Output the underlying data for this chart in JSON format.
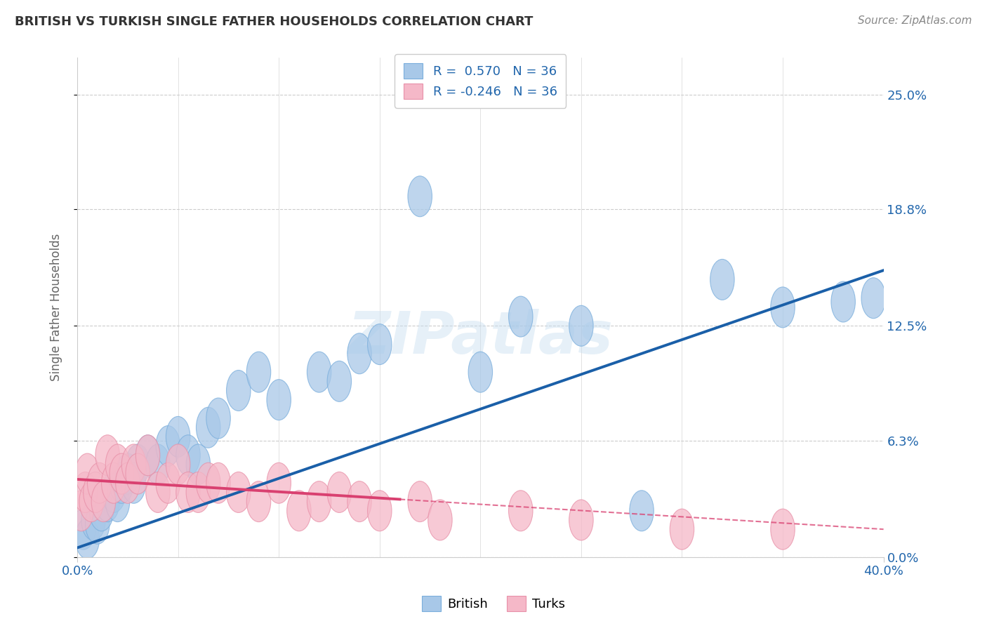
{
  "title": "BRITISH VS TURKISH SINGLE FATHER HOUSEHOLDS CORRELATION CHART",
  "source": "Source: ZipAtlas.com",
  "ylabel": "Single Father Households",
  "ytick_labels": [
    "0.0%",
    "6.3%",
    "12.5%",
    "18.8%",
    "25.0%"
  ],
  "ytick_values": [
    0.0,
    6.3,
    12.5,
    18.8,
    25.0
  ],
  "xlim": [
    0.0,
    40.0
  ],
  "ylim": [
    0.0,
    27.0
  ],
  "british_R": 0.57,
  "turkish_R": -0.246,
  "N": 36,
  "british_color": "#a8c8e8",
  "british_edge_color": "#7aaedc",
  "british_line_color": "#1a5fa8",
  "turkish_color": "#f5b8c8",
  "turkish_edge_color": "#e890a8",
  "turkish_line_color": "#d94070",
  "legend_text_color": "#2166ac",
  "watermark": "ZIPatlas",
  "british_x": [
    0.3,
    0.5,
    0.8,
    1.0,
    1.2,
    1.5,
    1.8,
    2.0,
    2.2,
    2.5,
    2.8,
    3.0,
    3.5,
    4.0,
    4.5,
    5.0,
    5.5,
    6.0,
    6.5,
    7.0,
    8.0,
    9.0,
    10.0,
    12.0,
    13.0,
    14.0,
    15.0,
    17.0,
    20.0,
    22.0,
    25.0,
    28.0,
    32.0,
    35.0,
    38.0,
    39.5
  ],
  "british_y": [
    1.5,
    1.0,
    2.0,
    1.8,
    2.5,
    3.0,
    3.5,
    3.0,
    4.0,
    4.5,
    4.0,
    5.0,
    5.5,
    5.0,
    6.0,
    6.5,
    5.5,
    5.0,
    7.0,
    7.5,
    9.0,
    10.0,
    8.5,
    10.0,
    9.5,
    11.0,
    11.5,
    19.5,
    10.0,
    13.0,
    12.5,
    2.5,
    15.0,
    13.5,
    13.8,
    14.0
  ],
  "turkish_x": [
    0.2,
    0.4,
    0.5,
    0.7,
    0.9,
    1.1,
    1.3,
    1.5,
    1.8,
    2.0,
    2.2,
    2.5,
    2.8,
    3.0,
    3.5,
    4.0,
    4.5,
    5.0,
    5.5,
    6.0,
    6.5,
    7.0,
    8.0,
    9.0,
    10.0,
    11.0,
    12.0,
    13.0,
    14.0,
    15.0,
    17.0,
    18.0,
    22.0,
    25.0,
    30.0,
    35.0
  ],
  "turkish_y": [
    2.5,
    3.5,
    4.5,
    3.0,
    3.5,
    4.0,
    3.0,
    5.5,
    4.0,
    5.0,
    4.5,
    4.0,
    5.0,
    4.5,
    5.5,
    3.5,
    4.0,
    5.0,
    3.5,
    3.5,
    4.0,
    4.0,
    3.5,
    3.0,
    4.0,
    2.5,
    3.0,
    3.5,
    3.0,
    2.5,
    3.0,
    2.0,
    2.5,
    2.0,
    1.5,
    1.5
  ],
  "british_line_x0": 0.0,
  "british_line_y0": 0.5,
  "british_line_x1": 40.0,
  "british_line_y1": 15.5,
  "turkish_line_x0": 0.0,
  "turkish_line_y0": 4.2,
  "turkish_line_x1": 40.0,
  "turkish_line_y1": 1.5,
  "turkish_solid_end": 16.0
}
